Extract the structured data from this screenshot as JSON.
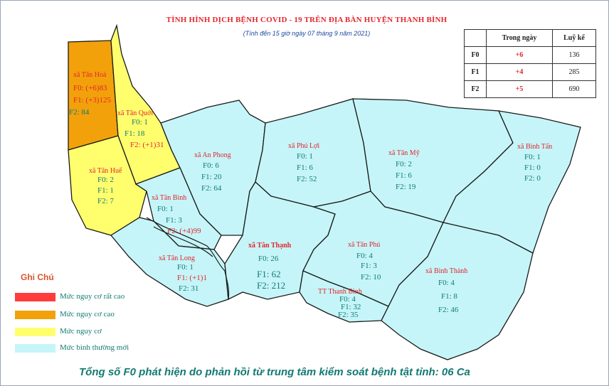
{
  "title": "TÌNH HÌNH DỊCH BỆNH COVID - 19 TRÊN ĐỊA BÀN HUYỆN THANH BÌNH",
  "subtitle": "(Tính đến 15 giờ ngày 07 tháng 9 năm 2021)",
  "colors": {
    "very_high": "#ff3b3b",
    "high": "#f2a10a",
    "medium": "#ffff6e",
    "normal": "#c5f5f8",
    "label_red": "#e3262d",
    "label_teal": "#127a72"
  },
  "stats_table": {
    "headers": [
      "",
      "Trong ngày",
      "Luỹ kế"
    ],
    "rows": [
      {
        "label": "F0",
        "today": "+6",
        "cumulative": "136"
      },
      {
        "label": "F1",
        "today": "+4",
        "cumulative": "285"
      },
      {
        "label": "F2",
        "today": "+5",
        "cumulative": "690"
      }
    ]
  },
  "regions": {
    "tan_hoa": {
      "name": "xã Tân Hoà",
      "f0": "F0: (+6)83",
      "f1": "F1: (+3)125",
      "f2": "F2: 84",
      "level": "high"
    },
    "tan_quoi": {
      "name": "xã Tân Quới",
      "f0": "F0: 1",
      "f1": "F1: 18",
      "f2": "F2: (+1)31",
      "level": "medium"
    },
    "tan_hue": {
      "name": "xã Tân Huế",
      "f0": "F0: 2",
      "f1": "F1: 1",
      "f2": "F2: 7",
      "level": "medium"
    },
    "an_phong": {
      "name": "xã An Phong",
      "f0": "F0: 6",
      "f1": "F1: 20",
      "f2": "F2: 64",
      "level": "normal"
    },
    "phu_loi": {
      "name": "xã Phú Lợi",
      "f0": "F0: 1",
      "f1": "F1: 6",
      "f2": "F2: 52",
      "level": "normal"
    },
    "tan_my": {
      "name": "xã Tân Mỹ",
      "f0": "F0: 2",
      "f1": "F1: 6",
      "f2": "F2: 19",
      "level": "normal"
    },
    "binh_tan": {
      "name": "xã Bình Tấn",
      "f0": "F0: 1",
      "f1": "F1: 0",
      "f2": "F2: 0",
      "level": "normal"
    },
    "tan_binh": {
      "name": "xã Tân Bình",
      "f0": "F0: 1",
      "f1": "F1: 3",
      "f2": "F2: (+4)99",
      "level": "normal"
    },
    "tan_long": {
      "name": "xã Tân Long",
      "f0": "F0: 1",
      "f1": "F1: (+1)1",
      "f2": "F2: 31",
      "level": "normal"
    },
    "tan_thanh": {
      "name": "xã Tân Thạnh",
      "f0": "F0: 26",
      "f1": "F1: 62",
      "f2": "F2: 212",
      "level": "normal"
    },
    "tan_phu": {
      "name": "xã Tân Phú",
      "f0": "F0: 4",
      "f1": "F1: 3",
      "f2": "F2: 10",
      "level": "normal"
    },
    "tt_thanh_binh": {
      "name": "TT Thanh Bình",
      "f0": "F0: 4",
      "f1": "F1: 32",
      "f2": "F2: 35",
      "level": "normal"
    },
    "binh_thanh": {
      "name": "xã Bình Thành",
      "f0": "F0: 4",
      "f1": "F1: 8",
      "f2": "F2: 46",
      "level": "normal"
    }
  },
  "legend": {
    "title": "Ghi Chú",
    "items": [
      {
        "label": "Mức  nguy cơ rất cao",
        "color": "#ff3b3b"
      },
      {
        "label": "Mức  nguy cơ cao",
        "color": "#f2a10a"
      },
      {
        "label": "Mức  nguy cơ",
        "color": "#ffff6e"
      },
      {
        "label": "Mức  bình thường mới",
        "color": "#c5f5f8"
      }
    ]
  },
  "footer": "Tổng số F0 phát hiện do phản hồi từ trung tâm kiểm soát bệnh tật tỉnh: 06 Ca"
}
